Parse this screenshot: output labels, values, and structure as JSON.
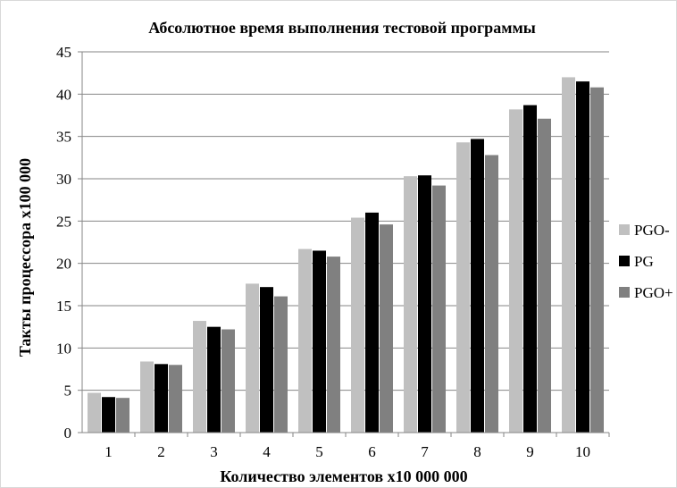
{
  "chart_data": {
    "type": "bar",
    "title": "Абсолютное время выполнения тестовой программы",
    "xlabel": "Количество элементов х10 000 000",
    "ylabel": "Такты процессора х100 000",
    "categories": [
      "1",
      "2",
      "3",
      "4",
      "5",
      "6",
      "7",
      "8",
      "9",
      "10"
    ],
    "ylim": [
      0,
      45
    ],
    "yticks": [
      0,
      5,
      10,
      15,
      20,
      25,
      30,
      35,
      40,
      45
    ],
    "grid": true,
    "legend_position": "right",
    "series": [
      {
        "name": "PGO-",
        "color": "#c0c0c0",
        "values": [
          4.7,
          8.4,
          13.2,
          17.6,
          21.7,
          25.4,
          30.3,
          34.3,
          38.2,
          42.0
        ]
      },
      {
        "name": "PG",
        "color": "#000000",
        "values": [
          4.2,
          8.1,
          12.5,
          17.2,
          21.5,
          26.0,
          30.4,
          34.7,
          38.7,
          41.5
        ]
      },
      {
        "name": "PGO+",
        "color": "#808080",
        "values": [
          4.1,
          8.0,
          12.2,
          16.1,
          20.8,
          24.6,
          29.2,
          32.8,
          37.1,
          40.8
        ]
      }
    ]
  }
}
